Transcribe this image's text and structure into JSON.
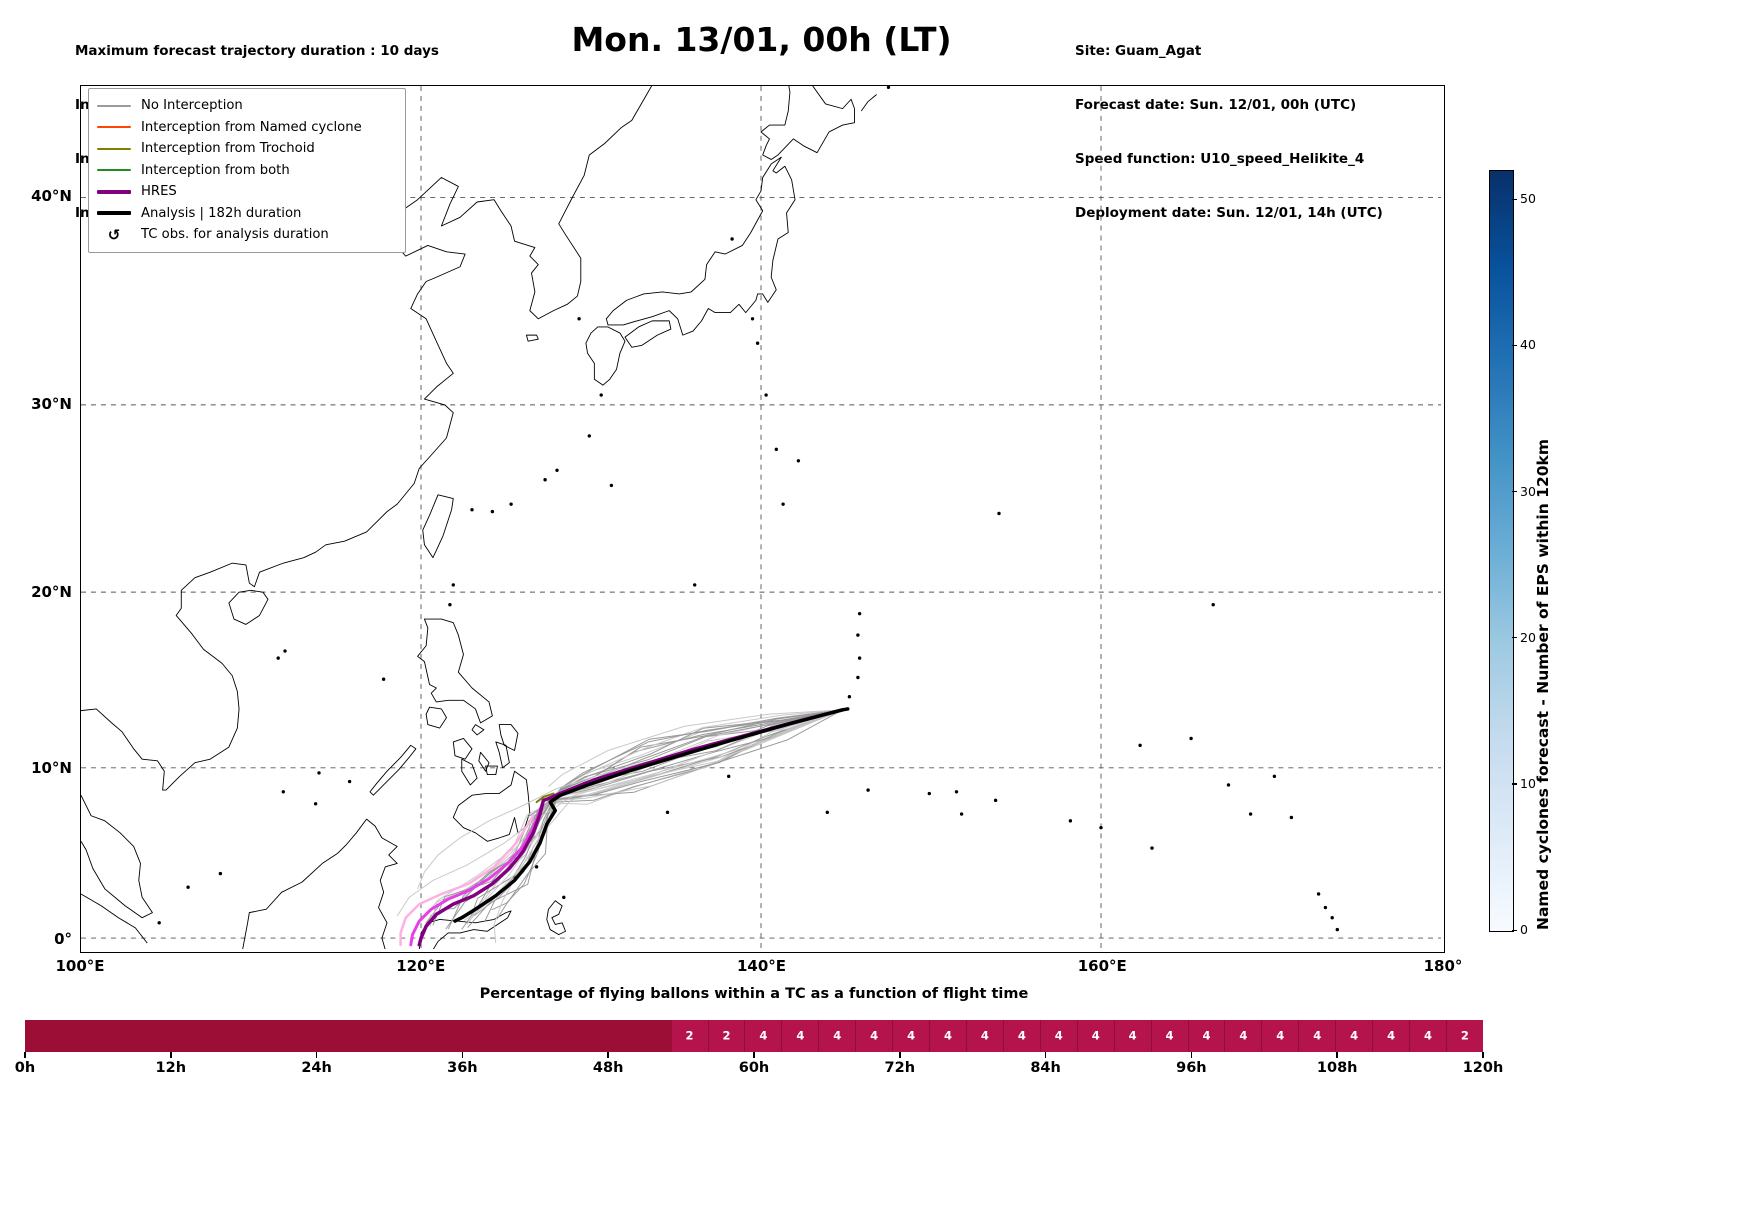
{
  "header": {
    "left_lines": [
      "Maximum forecast trajectory duration : 10 days",
      "Intercept distance: 300km",
      "Intercept RW2 (EPS):  30km/h2",
      "Intercept RW2 (HRES): 30km/h2"
    ],
    "title": "Mon. 13/01, 00h (LT)",
    "right_lines": [
      "Site: Guam_Agat",
      "Forecast date: Sun. 12/01, 00h (UTC)",
      "Speed function: U10_speed_Helikite_4",
      "Deployment date: Sun. 12/01, 14h (UTC)"
    ]
  },
  "map": {
    "lon_tick_labels": [
      "100°E",
      "120°E",
      "140°E",
      "160°E",
      "180°"
    ],
    "lon_tick_values": [
      100,
      120,
      140,
      160,
      180
    ],
    "lat_tick_labels": [
      "40°N",
      "30°N",
      "20°N",
      "10°N",
      "0°"
    ],
    "lat_tick_values": [
      40,
      30,
      20,
      10,
      0
    ],
    "gridline_lons": [
      120,
      140,
      160
    ],
    "gridline_lats": [
      0,
      10,
      20,
      30,
      40
    ]
  },
  "legend": {
    "items": [
      {
        "type": "line",
        "label": "No Interception",
        "color": "#9a9a9a",
        "line_width": 2
      },
      {
        "type": "line",
        "label": "Interception from Named cyclone",
        "color": "#ff4500",
        "line_width": 2
      },
      {
        "type": "line",
        "label": "Interception from Trochoid",
        "color": "#808000",
        "line_width": 2
      },
      {
        "type": "line",
        "label": "Interception from both",
        "color": "#228b22",
        "line_width": 2
      },
      {
        "type": "line",
        "label": "HRES",
        "color": "#800080",
        "line_width": 4
      },
      {
        "type": "line",
        "label": "Analysis | 182h duration",
        "color": "#000000",
        "line_width": 4
      },
      {
        "type": "symbol",
        "label": "TC obs. for analysis duration",
        "symbol": "↺"
      }
    ]
  },
  "colorbar": {
    "label": "Named cyclones forecast - Number of EPS within 120km",
    "ticks": [
      0,
      10,
      20,
      30,
      40,
      50
    ],
    "vmin": 0,
    "vmax": 52,
    "gradient": [
      "#f7fbff",
      "#deebf7",
      "#c6dbef",
      "#9ecae1",
      "#6baed6",
      "#4292c6",
      "#2171b5",
      "#08519c",
      "#08306b"
    ]
  },
  "chart_data": [
    {
      "type": "map_trajectories",
      "projection": "mercator",
      "extent": {
        "lon_min": 100,
        "lon_max": 180,
        "lat_min": -0.7,
        "lat_max": 44.9
      },
      "launch_site": {
        "name": "Guam_Agat",
        "lon": 144.8,
        "lat": 13.4
      },
      "series": [
        {
          "name": "Trochoid interception segment",
          "color": "#7a7a00",
          "width": 2,
          "points": [
            [
              127.8,
              8.5
            ],
            [
              127.2,
              8.3
            ],
            [
              126.8,
              8.0
            ]
          ]
        },
        {
          "name": "EPS member highlighted light pink",
          "color": "#ffb0e0",
          "width": 2.5,
          "points": [
            [
              126.6,
              7.2
            ],
            [
              125.6,
              5.6
            ],
            [
              124.3,
              4.2
            ],
            [
              122.8,
              3.2
            ],
            [
              121.2,
              2.6
            ],
            [
              119.9,
              2.0
            ],
            [
              119.1,
              1.2
            ],
            [
              118.8,
              0.3
            ],
            [
              118.8,
              -0.4
            ]
          ]
        },
        {
          "name": "EPS member highlighted magenta",
          "color": "#e93fe9",
          "width": 3,
          "points": [
            [
              127.1,
              7.8
            ],
            [
              126.6,
              6.5
            ],
            [
              126.0,
              5.4
            ],
            [
              125.1,
              4.4
            ],
            [
              124.0,
              3.5
            ],
            [
              122.8,
              2.8
            ],
            [
              121.6,
              2.3
            ],
            [
              120.6,
              1.7
            ],
            [
              119.9,
              1.0
            ],
            [
              119.5,
              0.2
            ],
            [
              119.4,
              -0.4
            ]
          ]
        },
        {
          "name": "HRES",
          "color": "#800080",
          "width": 3.5,
          "points": [
            [
              144.8,
              13.35
            ],
            [
              141.8,
              12.6
            ],
            [
              138.8,
              11.8
            ],
            [
              135.8,
              11.0
            ],
            [
              132.8,
              10.1
            ],
            [
              130.2,
              9.3
            ],
            [
              128.4,
              8.6
            ],
            [
              127.5,
              8.2
            ],
            [
              127.2,
              8.1
            ],
            [
              127.0,
              7.3
            ],
            [
              126.6,
              6.2
            ],
            [
              126.0,
              5.1
            ],
            [
              125.2,
              4.1
            ],
            [
              124.2,
              3.2
            ],
            [
              123.1,
              2.5
            ],
            [
              121.9,
              2.0
            ],
            [
              120.9,
              1.4
            ],
            [
              120.3,
              0.7
            ],
            [
              120.0,
              0.0
            ],
            [
              119.9,
              -0.4
            ]
          ]
        },
        {
          "name": "Analysis | 182h duration",
          "color": "#000000",
          "width": 3.5,
          "points": [
            [
              145.1,
              13.4
            ],
            [
              144.8,
              13.35
            ],
            [
              141.5,
              12.5
            ],
            [
              138.3,
              11.6
            ],
            [
              135.2,
              10.7
            ],
            [
              132.2,
              9.8
            ],
            [
              129.8,
              9.0
            ],
            [
              128.2,
              8.4
            ],
            [
              127.6,
              8.0
            ],
            [
              127.9,
              7.5
            ],
            [
              127.4,
              6.7
            ],
            [
              127.0,
              5.6
            ],
            [
              126.4,
              4.5
            ],
            [
              125.5,
              3.4
            ],
            [
              124.4,
              2.5
            ],
            [
              123.2,
              1.7
            ],
            [
              122.4,
              1.2
            ],
            [
              122.0,
              1.0
            ]
          ]
        }
      ],
      "eps_members": {
        "count": 24,
        "seed": 7,
        "color_dark": "#969696",
        "color_light": "#c6c6c6",
        "converge_point": [
          127.7,
          8.3
        ],
        "endpoint_lon_range": [
          118.5,
          125.5
        ],
        "endpoint_lat_range": [
          0,
          3
        ]
      }
    },
    {
      "type": "bar",
      "title": "Percentage of flying ballons within a TC as a function of flight time",
      "bin_hours": 3,
      "x_range_hours": [
        0,
        120
      ],
      "x_tick_labels": [
        "0h",
        "12h",
        "24h",
        "36h",
        "48h",
        "60h",
        "72h",
        "84h",
        "96h",
        "108h",
        "120h"
      ],
      "values": [
        0,
        0,
        0,
        0,
        0,
        0,
        0,
        0,
        0,
        0,
        0,
        0,
        0,
        0,
        0,
        0,
        0,
        0,
        2,
        2,
        4,
        4,
        4,
        4,
        4,
        4,
        4,
        4,
        4,
        4,
        4,
        4,
        4,
        4,
        4,
        4,
        4,
        4,
        4,
        2
      ],
      "colors": {
        "base": "#9c0e35",
        "highlight": "#b5134b",
        "value_text": "#ffffff"
      }
    }
  ]
}
